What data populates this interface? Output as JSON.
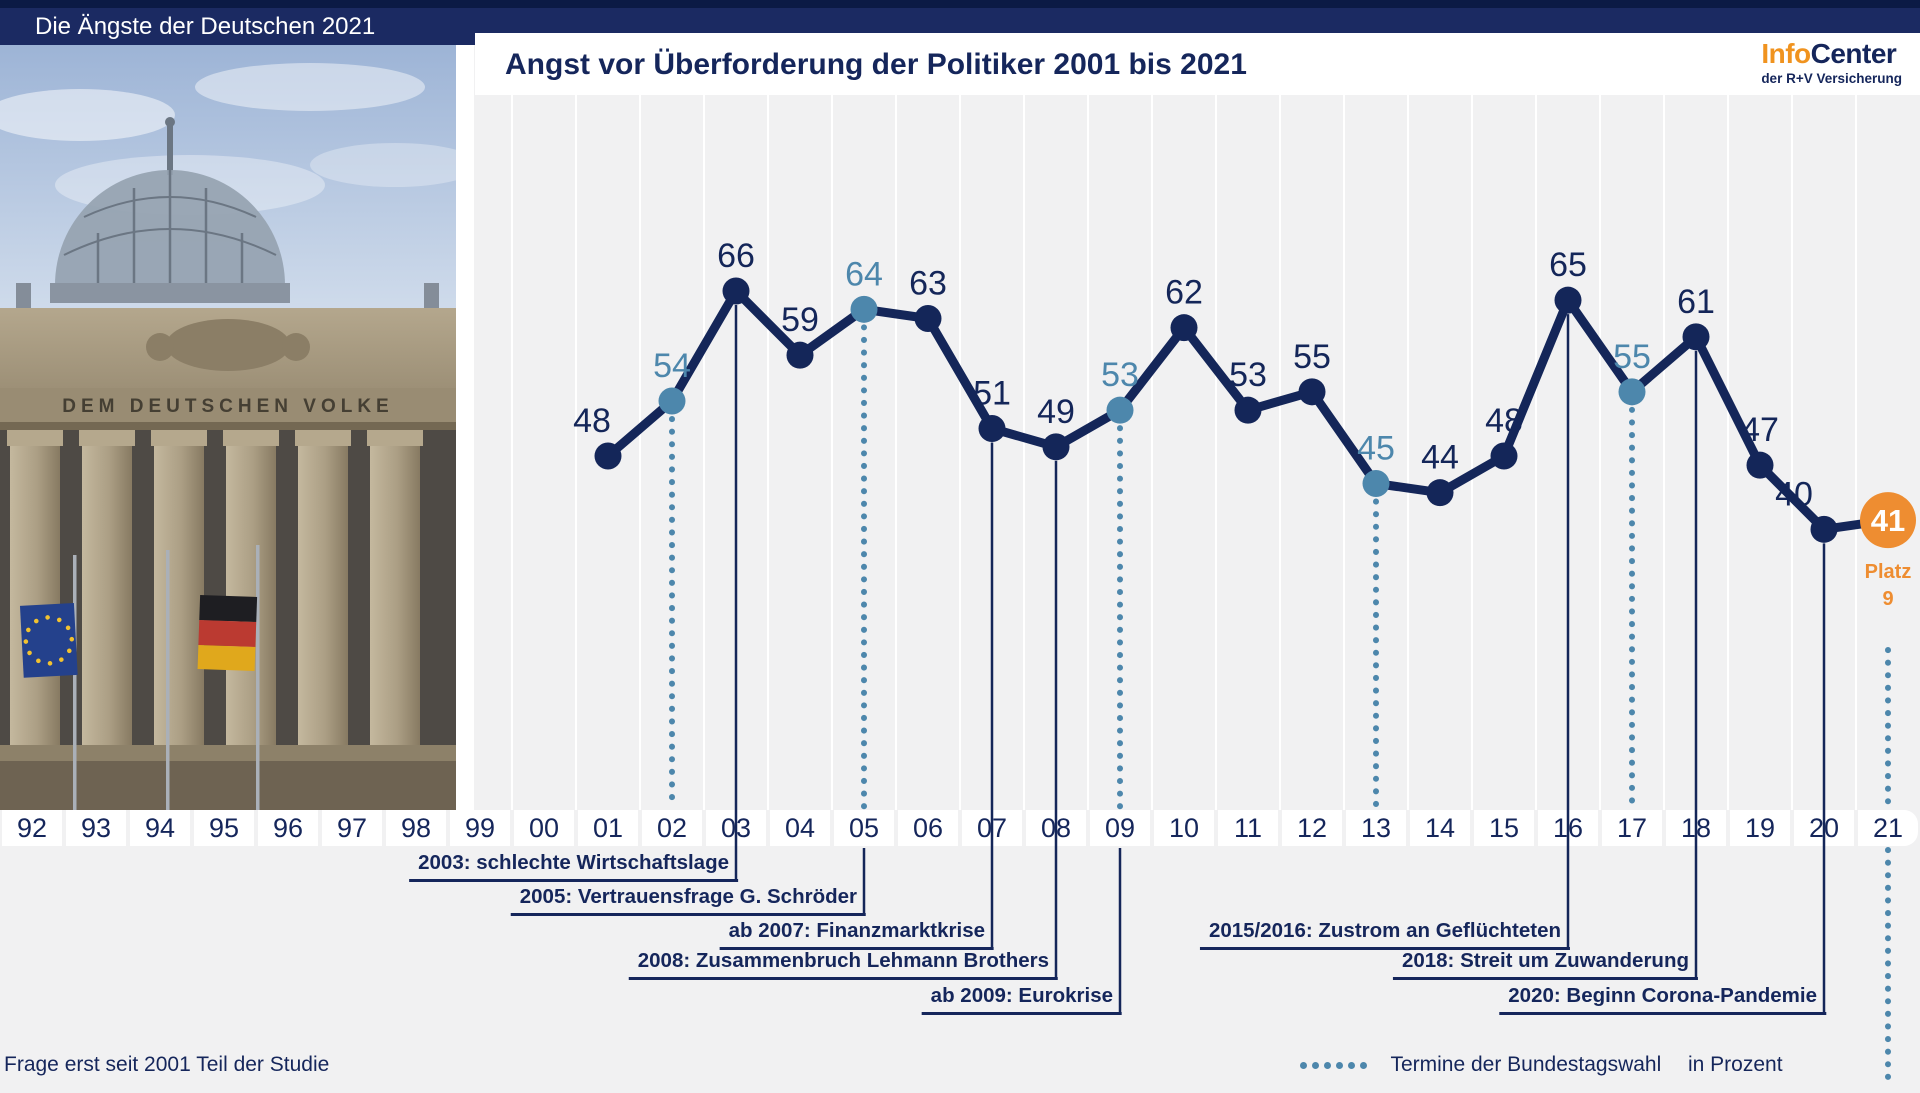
{
  "banner": {
    "title": "Die Ängste der Deutschen 2021"
  },
  "header": {
    "title": "Angst vor Überforderung der Politiker 2001 bis 2021",
    "logo": {
      "part1": "Info",
      "part2": "Center",
      "subtitle": "der R+V Versicherung"
    }
  },
  "photo": {
    "inscription": "DEM DEUTSCHEN VOLKE"
  },
  "footer": {
    "note": "Frage erst seit 2001 Teil der Studie",
    "legend_label": "Termine der Bundestagswahl",
    "unit_label": "in Prozent"
  },
  "chart_data": {
    "type": "line",
    "title": "Angst vor Überforderung der Politiker 2001 bis 2021",
    "ylabel": "in Prozent",
    "axis_years": [
      "92",
      "93",
      "94",
      "95",
      "96",
      "97",
      "98",
      "99",
      "00",
      "01",
      "02",
      "03",
      "04",
      "05",
      "06",
      "07",
      "08",
      "09",
      "10",
      "11",
      "12",
      "13",
      "14",
      "15",
      "16",
      "17",
      "18",
      "19",
      "20",
      "21"
    ],
    "series": [
      {
        "name": "Angst vor Überforderung der Politiker",
        "x": [
          2001,
          2002,
          2003,
          2004,
          2005,
          2006,
          2007,
          2008,
          2009,
          2010,
          2011,
          2012,
          2013,
          2014,
          2015,
          2016,
          2017,
          2018,
          2019,
          2020,
          2021
        ],
        "values": [
          48,
          54,
          66,
          59,
          64,
          63,
          51,
          49,
          53,
          62,
          53,
          55,
          45,
          44,
          48,
          65,
          55,
          61,
          47,
          40,
          41
        ]
      }
    ],
    "election_years": [
      2002,
      2005,
      2009,
      2013,
      2017,
      2021
    ],
    "final_point": {
      "year": 2021,
      "value": 41,
      "rank_line1": "Platz",
      "rank_line2": "9"
    },
    "annotations": [
      {
        "year": 2003,
        "row": 0,
        "label": "2003: schlechte Wirtschaftslage"
      },
      {
        "year": 2005,
        "row": 1,
        "label": "2005: Vertrauensfrage G. Schröder"
      },
      {
        "year": 2007,
        "row": 2,
        "label": "ab 2007: Finanzmarktkrise"
      },
      {
        "year": 2008,
        "row": 3,
        "label": "2008: Zusammenbruch Lehmann Brothers"
      },
      {
        "year": 2009,
        "row": 4,
        "label": "ab 2009: Eurokrise"
      },
      {
        "year": 2016,
        "row": 2,
        "label": "2015/2016: Zustrom an Geflüchteten"
      },
      {
        "year": 2018,
        "row": 3,
        "label": "2018: Streit um Zuwanderung"
      },
      {
        "year": 2020,
        "row": 4,
        "label": "2020: Beginn Corona-Pandemie"
      }
    ],
    "colors": {
      "line": "#142659",
      "election": "#4d87ac",
      "highlight": "#ee8d31",
      "grid": "#ffffff",
      "label": "#142659"
    },
    "ylim": [
      35,
      70
    ],
    "grid": true,
    "legend_position": "bottom-right"
  }
}
